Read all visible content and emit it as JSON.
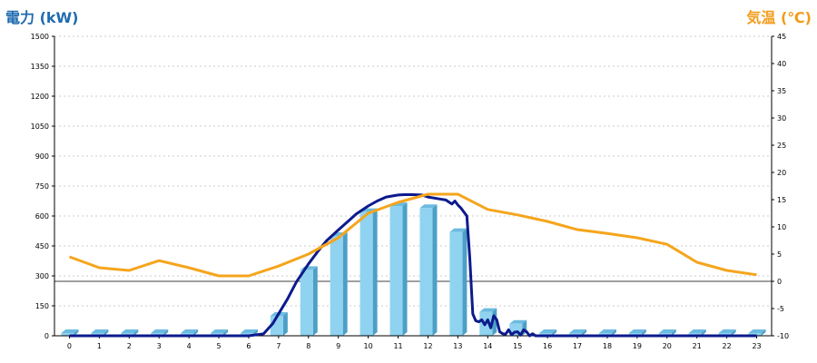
{
  "chart_data": {
    "type": "bar",
    "title_left": "電力 (kW)",
    "title_right": "気温 (℃)",
    "colors": {
      "left_title": "#1f6bb0",
      "right_title": "#f29c1a",
      "bar_front": "#8fd3f0",
      "bar_side": "#4d9fc7",
      "bar_top": "#6cbbe0",
      "power_line": "#0d1a8c",
      "temp_line": "#f5a51c",
      "grid": "#bbbbbb"
    },
    "categories": [
      "0",
      "1",
      "2",
      "3",
      "4",
      "5",
      "6",
      "7",
      "8",
      "9",
      "10",
      "11",
      "12",
      "13",
      "14",
      "15",
      "16",
      "17",
      "18",
      "19",
      "20",
      "21",
      "22",
      "23"
    ],
    "ylim_left": [
      0,
      1500
    ],
    "yticks_left": [
      "0",
      "150",
      "300",
      "450",
      "600",
      "750",
      "900",
      "1050",
      "1200",
      "1350",
      "1500"
    ],
    "ylim_right": [
      -10,
      45
    ],
    "yticks_right": [
      "-10",
      "-5",
      "0",
      "5",
      "10",
      "15",
      "20",
      "25",
      "30",
      "35",
      "40",
      "45"
    ],
    "grid": true,
    "series": [
      {
        "type": "bar",
        "values": [
          0,
          0,
          0,
          0,
          0,
          0,
          0,
          100,
          330,
          500,
          620,
          650,
          640,
          520,
          120,
          60,
          0,
          0,
          0,
          0,
          0,
          0,
          0,
          0
        ]
      },
      {
        "type": "line",
        "axis": "left",
        "x": [
          0,
          1,
          2,
          3,
          4,
          5,
          6,
          6.5,
          6.8,
          7,
          7.3,
          7.6,
          8,
          8.3,
          8.6,
          9,
          9.3,
          9.6,
          10,
          10.3,
          10.6,
          11,
          11.2,
          11.5,
          11.8,
          12,
          12.2,
          12.4,
          12.6,
          12.7,
          12.8,
          12.9,
          13,
          13.1,
          13.2,
          13.3,
          13.4,
          13.5,
          13.6,
          13.7,
          13.8,
          13.9,
          14,
          14.1,
          14.2,
          14.3,
          14.4,
          14.5,
          14.6,
          14.7,
          14.8,
          14.9,
          15,
          15.1,
          15.2,
          15.3,
          15.4,
          15.5,
          15.6,
          15.8,
          16,
          17,
          18,
          19,
          20,
          21,
          22,
          23
        ],
        "values": [
          0,
          0,
          0,
          0,
          0,
          0,
          0,
          10,
          60,
          110,
          185,
          270,
          360,
          420,
          475,
          530,
          570,
          610,
          650,
          675,
          695,
          705,
          707,
          707,
          705,
          695,
          690,
          685,
          680,
          670,
          660,
          675,
          655,
          640,
          620,
          600,
          390,
          110,
          75,
          70,
          80,
          55,
          80,
          40,
          100,
          80,
          20,
          10,
          8,
          30,
          5,
          18,
          20,
          3,
          30,
          20,
          0,
          10,
          0,
          0,
          0,
          0,
          0,
          0,
          0,
          0,
          0,
          0
        ]
      },
      {
        "type": "line",
        "axis": "right",
        "x": [
          0,
          1,
          2,
          3,
          4,
          5,
          6,
          7,
          8,
          9,
          10,
          11,
          12,
          13,
          14,
          15,
          16,
          17,
          18,
          19,
          20,
          21,
          22,
          23
        ],
        "values": [
          4.5,
          2.5,
          2,
          3.8,
          2.5,
          1,
          1,
          2.8,
          5,
          8,
          12.5,
          14.5,
          16,
          16,
          13.2,
          12.2,
          11,
          9.5,
          8.8,
          8,
          6.8,
          3.5,
          2,
          1.2
        ]
      }
    ]
  }
}
